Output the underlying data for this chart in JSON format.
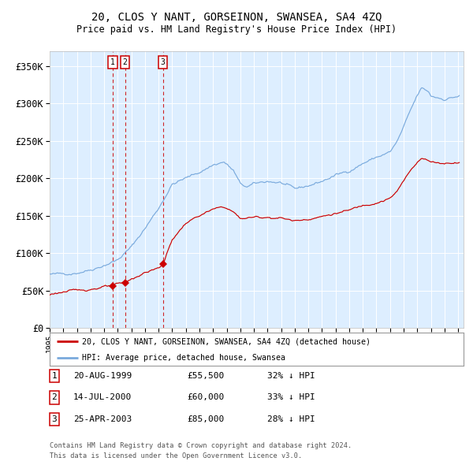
{
  "title": "20, CLOS Y NANT, GORSEINON, SWANSEA, SA4 4ZQ",
  "subtitle": "Price paid vs. HM Land Registry's House Price Index (HPI)",
  "purchases": [
    {
      "date": "1999-08-20",
      "price": 55500,
      "label": "1",
      "hpi_pct": "32% ↓ HPI",
      "display": "20-AUG-1999",
      "display_price": "£55,500"
    },
    {
      "date": "2000-07-14",
      "price": 60000,
      "label": "2",
      "hpi_pct": "33% ↓ HPI",
      "display": "14-JUL-2000",
      "display_price": "£60,000"
    },
    {
      "date": "2003-04-25",
      "price": 85000,
      "label": "3",
      "hpi_pct": "28% ↓ HPI",
      "display": "25-APR-2003",
      "display_price": "£85,000"
    }
  ],
  "hpi_line_color": "#7aaadd",
  "property_line_color": "#cc0000",
  "marker_color": "#cc0000",
  "dashed_line_color": "#cc0000",
  "plot_background": "#ddeeff",
  "grid_color": "#ffffff",
  "yticks": [
    0,
    50000,
    100000,
    150000,
    200000,
    250000,
    300000,
    350000
  ],
  "ytick_labels": [
    "£0",
    "£50K",
    "£100K",
    "£150K",
    "£200K",
    "£250K",
    "£300K",
    "£350K"
  ],
  "legend1": "20, CLOS Y NANT, GORSEINON, SWANSEA, SA4 4ZQ (detached house)",
  "legend2": "HPI: Average price, detached house, Swansea",
  "footer1": "Contains HM Land Registry data © Crown copyright and database right 2024.",
  "footer2": "This data is licensed under the Open Government Licence v3.0."
}
